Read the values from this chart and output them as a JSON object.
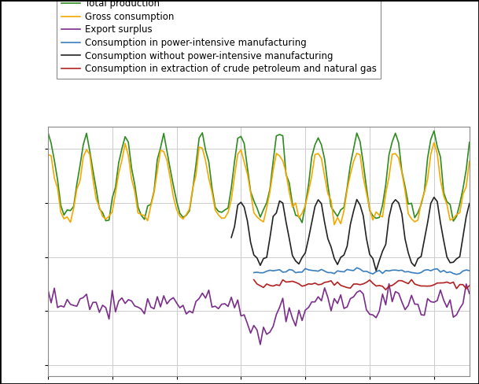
{
  "series": {
    "total_production": {
      "label": "Total production",
      "color": "#2d8b1f",
      "linewidth": 1.2
    },
    "export_surplus": {
      "label": "Export surplus",
      "color": "#7b2d8b",
      "linewidth": 1.2
    },
    "gross_consumption": {
      "label": "Gross consumption",
      "color": "#f5a800",
      "linewidth": 1.2
    },
    "consumption_power_intensive": {
      "label": "Consumption in power-intensive manufacturing",
      "color": "#3a7ebf",
      "linewidth": 1.2
    },
    "consumption_without_power_intensive": {
      "label": "Consumption without power-intensive manufacturing",
      "color": "#222222",
      "linewidth": 1.2
    },
    "consumption_extraction": {
      "label": "Consumption in extraction of crude petroleum and natural gas",
      "color": "#b22222",
      "linewidth": 1.2
    }
  },
  "background_color": "#ffffff",
  "plot_background_color": "#ffffff",
  "grid_color": "#cccccc",
  "outer_border_color": "#000000",
  "legend_fontsize": 8.5,
  "legend_border_color": "#888888",
  "figsize": [
    6.09,
    4.88
  ],
  "dpi": 100
}
